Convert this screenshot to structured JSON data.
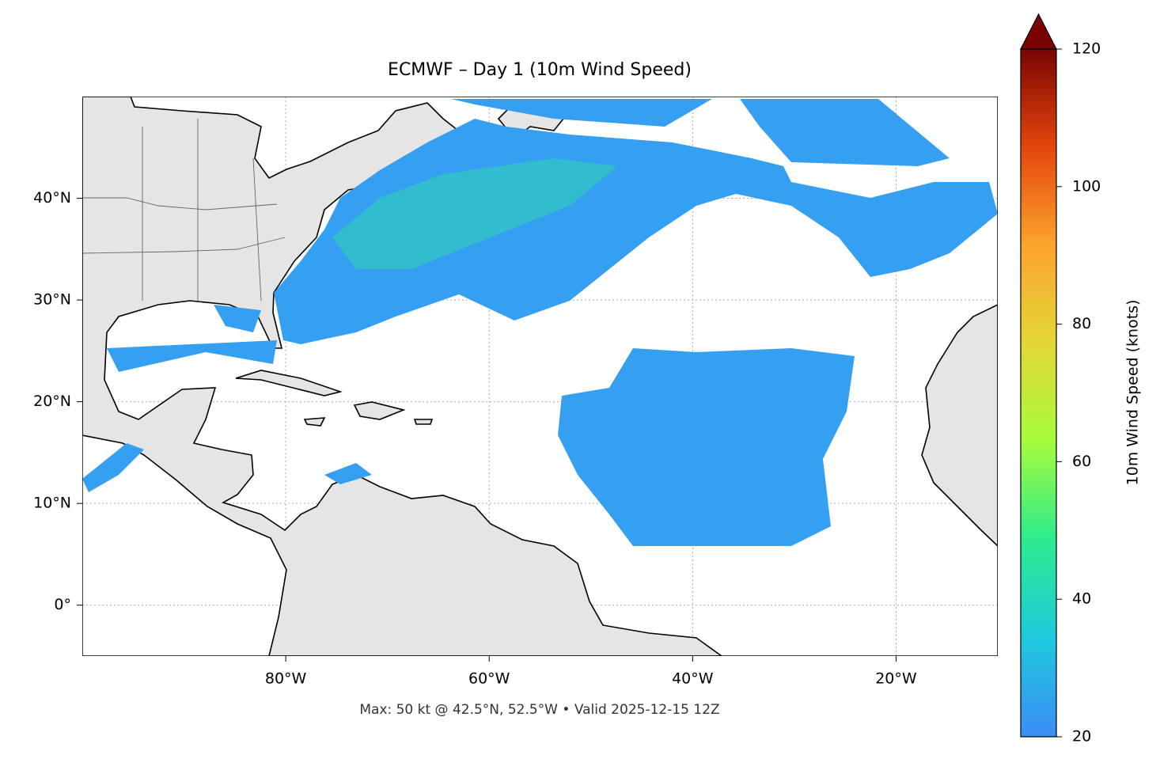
{
  "chart_data": {
    "type": "map",
    "title": "ECMWF – Day 1 (10m Wind Speed)",
    "annotation": "Max: 50 kt @ 42.5°N, 52.5°W • Valid 2025-12-15 12Z",
    "xlim": [
      -100,
      -10
    ],
    "ylim": [
      -5,
      50
    ],
    "xticks": [
      {
        "value": -80,
        "label": "80°W"
      },
      {
        "value": -60,
        "label": "60°W"
      },
      {
        "value": -40,
        "label": "40°W"
      },
      {
        "value": -20,
        "label": "20°W"
      }
    ],
    "yticks": [
      {
        "value": 0,
        "label": "0°"
      },
      {
        "value": 10,
        "label": "10°N"
      },
      {
        "value": 20,
        "label": "20°N"
      },
      {
        "value": 30,
        "label": "30°N"
      },
      {
        "value": 40,
        "label": "40°N"
      }
    ],
    "grid": true,
    "colorbar": {
      "label": "10m Wind Speed (knots)",
      "lim": [
        20,
        120
      ],
      "ticks": [
        20,
        40,
        60,
        80,
        100,
        120
      ],
      "extend": "max",
      "colors": [
        "#3b8df5",
        "#1fc9dd",
        "#2ceb8f",
        "#a4fc3b",
        "#e3d737",
        "#fba42e",
        "#e4460a",
        "#7a0403"
      ]
    }
  }
}
